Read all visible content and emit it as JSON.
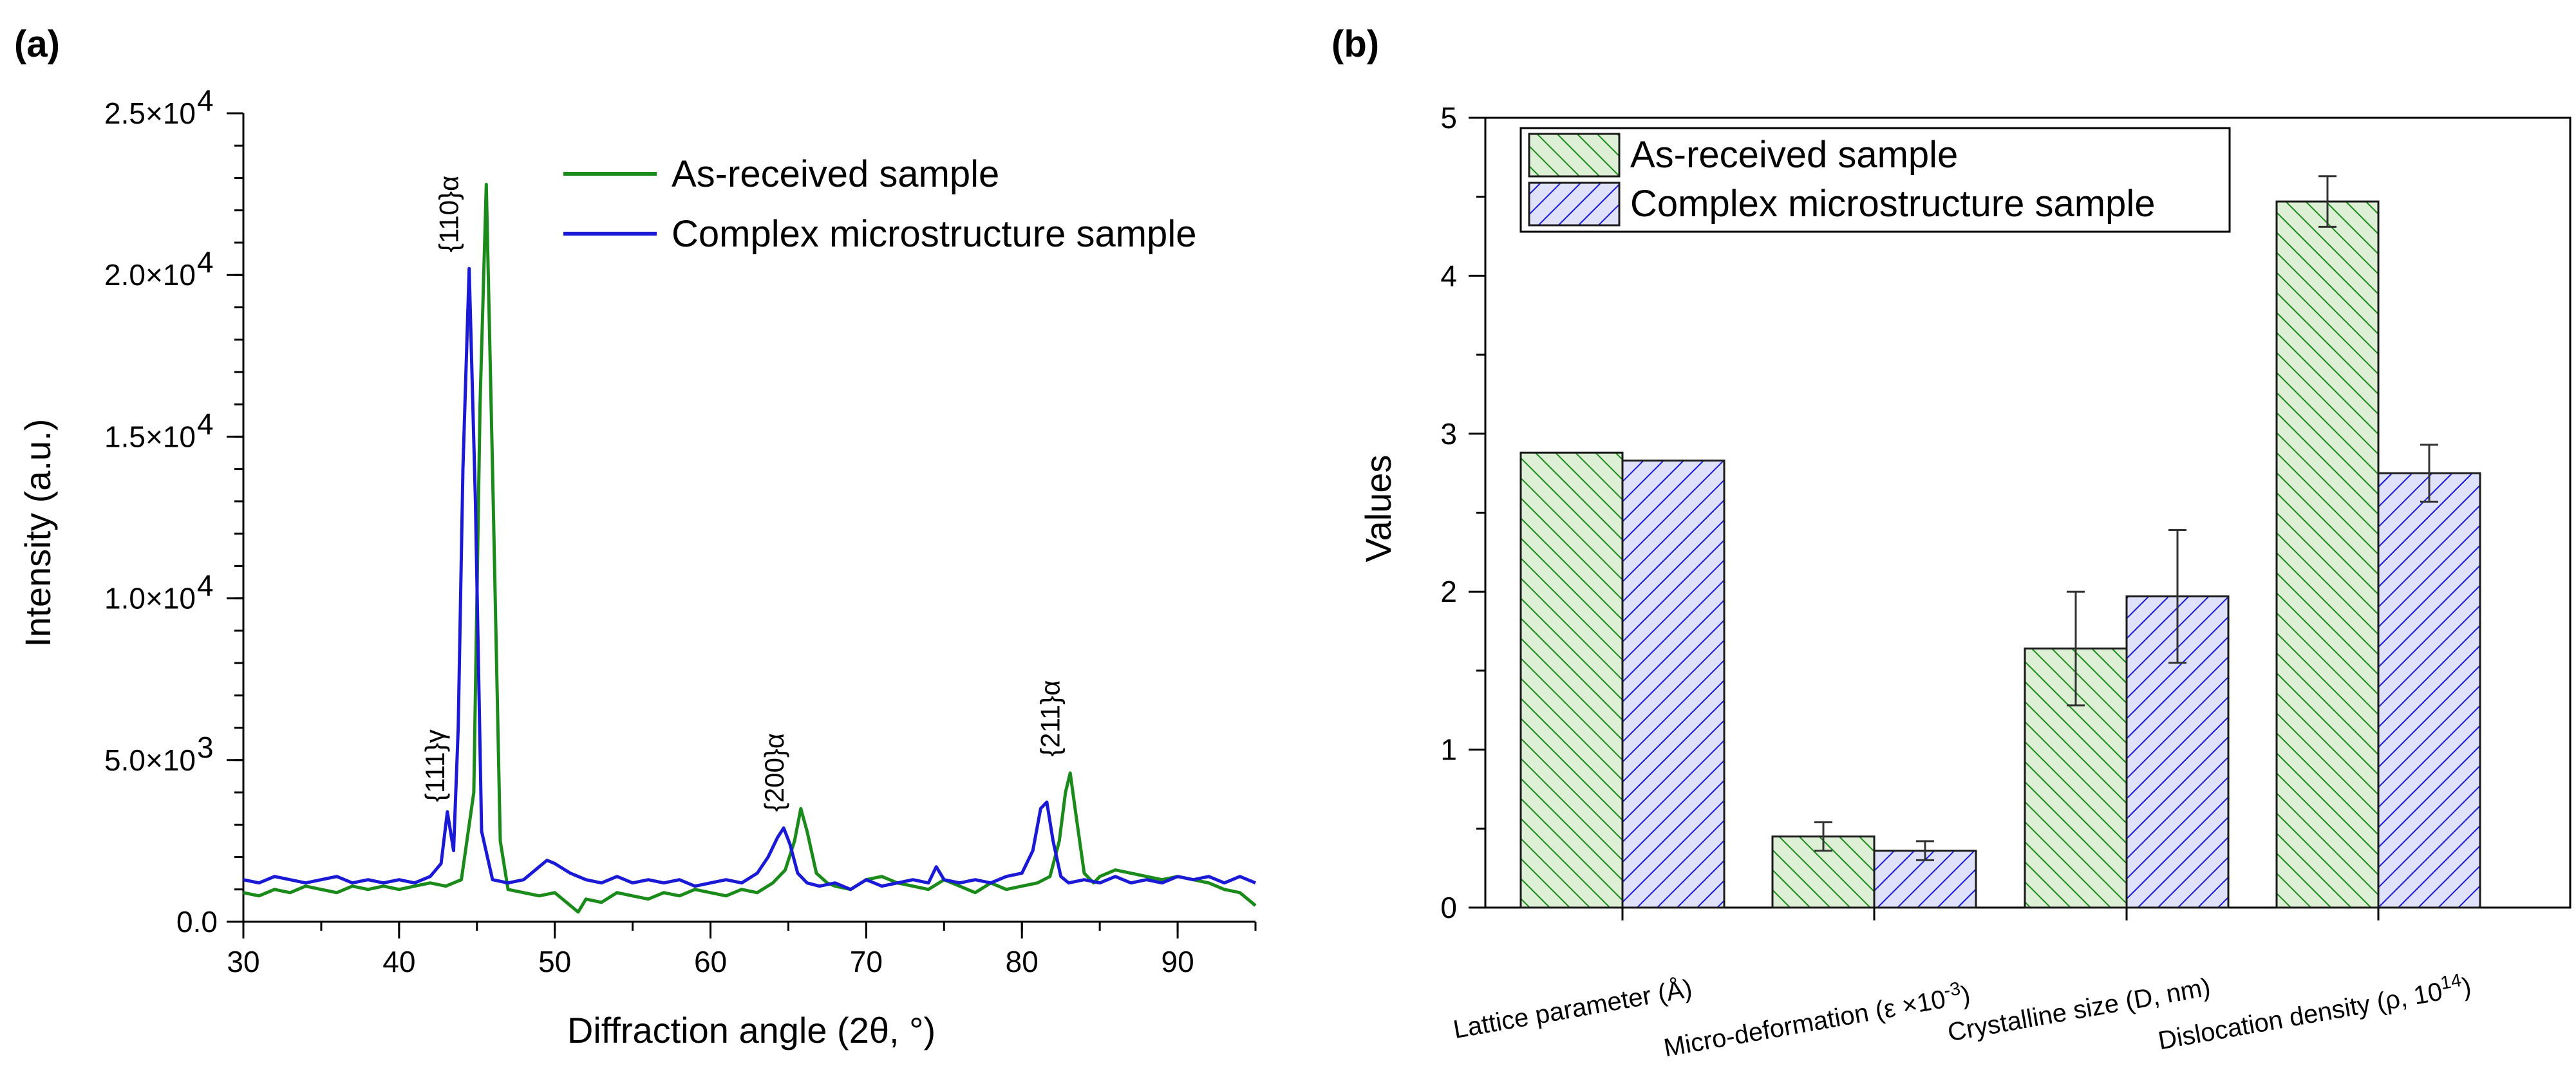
{
  "chart_data": [
    {
      "panel": "(a)",
      "type": "line",
      "xlabel": "Diffraction angle (2θ, °)",
      "ylabel": "Intensity (a.u.)",
      "xlim": [
        30,
        95
      ],
      "ylim": [
        0,
        25000
      ],
      "xticks": [
        30,
        40,
        50,
        60,
        70,
        80,
        90
      ],
      "yticks": [
        {
          "value": 0,
          "label": "0.0"
        },
        {
          "value": 5000,
          "label": "5.0×10",
          "exp": "3"
        },
        {
          "value": 10000,
          "label": "1.0×10",
          "exp": "4"
        },
        {
          "value": 15000,
          "label": "1.5×10",
          "exp": "4"
        },
        {
          "value": 20000,
          "label": "2.0×10",
          "exp": "4"
        },
        {
          "value": 25000,
          "label": "2.5×10",
          "exp": "4"
        }
      ],
      "legend_position": "top-right",
      "series": [
        {
          "name": "As-received sample",
          "color": "#1a8a1a",
          "x": [
            30,
            31,
            32,
            33,
            34,
            35,
            36,
            37,
            38,
            39,
            40,
            41,
            42,
            43,
            44,
            44.8,
            45.2,
            45.6,
            46.0,
            46.5,
            47,
            48,
            49,
            50,
            51,
            51.5,
            52,
            53,
            54,
            55,
            56,
            57,
            58,
            59,
            60,
            61,
            62,
            63,
            64,
            64.8,
            65.4,
            65.8,
            66.2,
            66.8,
            67.5,
            68,
            69,
            70,
            71,
            72,
            73,
            74,
            75,
            76,
            77,
            78,
            79,
            80,
            81,
            81.8,
            82.4,
            82.8,
            83.1,
            83.5,
            84,
            84.6,
            85,
            86,
            87,
            88,
            89,
            90,
            91,
            92,
            93,
            94,
            95
          ],
          "y": [
            900,
            800,
            1000,
            900,
            1100,
            1000,
            900,
            1100,
            1000,
            1100,
            1000,
            1100,
            1200,
            1100,
            1300,
            4000,
            16000,
            22800,
            14000,
            2500,
            1000,
            900,
            800,
            900,
            500,
            300,
            700,
            600,
            900,
            800,
            700,
            900,
            800,
            1000,
            900,
            800,
            1000,
            900,
            1200,
            1600,
            2500,
            3500,
            2800,
            1500,
            1200,
            1100,
            1000,
            1300,
            1400,
            1200,
            1100,
            1000,
            1300,
            1100,
            900,
            1200,
            1000,
            1100,
            1200,
            1400,
            2500,
            4000,
            4600,
            3200,
            1500,
            1200,
            1400,
            1600,
            1500,
            1400,
            1300,
            1400,
            1300,
            1200,
            1000,
            900,
            500
          ]
        },
        {
          "name": "Complex microstructure sample",
          "color": "#1a1ad6",
          "x": [
            30,
            31,
            32,
            33,
            34,
            35,
            36,
            37,
            38,
            39,
            40,
            41,
            42,
            42.7,
            43.1,
            43.5,
            43.8,
            44.1,
            44.5,
            44.9,
            45.3,
            46,
            47,
            48,
            49,
            49.5,
            50,
            51,
            52,
            53,
            54,
            55,
            56,
            57,
            58,
            59,
            60,
            61,
            62,
            63,
            63.7,
            64.3,
            64.7,
            65.1,
            65.6,
            66.2,
            67,
            68,
            69,
            70,
            71,
            72,
            73,
            74,
            74.5,
            75,
            76,
            77,
            78,
            79,
            80,
            80.7,
            81.2,
            81.6,
            82,
            82.5,
            83,
            84,
            85,
            86,
            87,
            88,
            89,
            90,
            91,
            92,
            93,
            94,
            95
          ],
          "y": [
            1300,
            1200,
            1400,
            1300,
            1200,
            1300,
            1400,
            1200,
            1300,
            1200,
            1300,
            1200,
            1400,
            1800,
            3400,
            2200,
            6000,
            14000,
            20200,
            13000,
            2800,
            1300,
            1200,
            1300,
            1700,
            1900,
            1800,
            1500,
            1300,
            1200,
            1400,
            1200,
            1300,
            1200,
            1300,
            1100,
            1200,
            1300,
            1200,
            1500,
            2000,
            2600,
            2900,
            2400,
            1500,
            1200,
            1100,
            1200,
            1000,
            1300,
            1100,
            1200,
            1300,
            1200,
            1700,
            1300,
            1200,
            1300,
            1200,
            1400,
            1500,
            2200,
            3500,
            3700,
            2500,
            1400,
            1200,
            1300,
            1200,
            1400,
            1200,
            1300,
            1200,
            1400,
            1300,
            1400,
            1200,
            1400,
            1200
          ]
        }
      ],
      "annotations": [
        {
          "text": "{111}γ",
          "x": 42.9,
          "y": 3700
        },
        {
          "text": "{110}α",
          "x": 43.8,
          "y": 20700
        },
        {
          "text": "{200}α",
          "x": 64.7,
          "y": 3400
        },
        {
          "text": "{211}α",
          "x": 82.4,
          "y": 5100
        }
      ]
    },
    {
      "panel": "(b)",
      "type": "bar",
      "ylabel": "Values",
      "ylim": [
        0,
        5
      ],
      "yticks": [
        0,
        1,
        2,
        3,
        4,
        5
      ],
      "legend_position": "top-left",
      "categories": [
        {
          "text": "Lattice parameter (Å)"
        },
        {
          "text": "Micro-deformation (ε ×10",
          "sup": "-3",
          "tail": ")"
        },
        {
          "text": "Crystalline size (D, nm)"
        },
        {
          "text": "Dislocation density (ρ, 10",
          "sup": "14",
          "tail": ")"
        }
      ],
      "series": [
        {
          "name": "As-received sample",
          "color": "#1a8a1a",
          "fill": "#ddf0d6",
          "values": [
            2.88,
            0.45,
            1.64,
            4.47
          ],
          "errors": [
            0.0,
            0.09,
            0.36,
            0.16
          ]
        },
        {
          "name": "Complex microstructure sample",
          "color": "#1a1ad6",
          "fill": "#e0e2fb",
          "values": [
            2.83,
            0.36,
            1.97,
            2.75
          ],
          "errors": [
            0.0,
            0.06,
            0.42,
            0.18
          ]
        }
      ]
    }
  ]
}
